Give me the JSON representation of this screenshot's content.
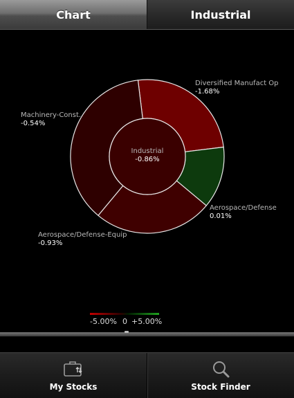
{
  "tabs": [
    {
      "label": "Chart",
      "active": false
    },
    {
      "label": "Industrial",
      "active": true
    }
  ],
  "chart_data": {
    "type": "pie",
    "title": "",
    "center": {
      "label": "Industrial",
      "value": "-0.86%",
      "change": -0.86
    },
    "slices": [
      {
        "label": "Diversified Manufact Op",
        "value_text": "-1.68%",
        "change": -1.68,
        "share": 0.25,
        "color": "#6e0000"
      },
      {
        "label": "Aerospace/Defense",
        "value_text": "0.01%",
        "change": 0.01,
        "share": 0.13,
        "color": "#0d3a0d"
      },
      {
        "label": "Aerospace/Defense-Equip",
        "value_text": "-0.93%",
        "change": -0.93,
        "share": 0.25,
        "color": "#3f0000"
      },
      {
        "label": "Machinery-Const.",
        "value_text": "-0.54%",
        "change": -0.54,
        "share": 0.37,
        "color": "#2e0000"
      }
    ],
    "center_color": "#3a0000",
    "legend": {
      "min_label": "-5.00%",
      "mid_label": "0",
      "max_label": "+5.00%",
      "negative_color": "#c40000",
      "positive_color": "#1fa31f"
    }
  },
  "bottom_nav": [
    {
      "label": "My Stocks",
      "icon": "briefcase-icon"
    },
    {
      "label": "Stock Finder",
      "icon": "search-icon"
    }
  ]
}
